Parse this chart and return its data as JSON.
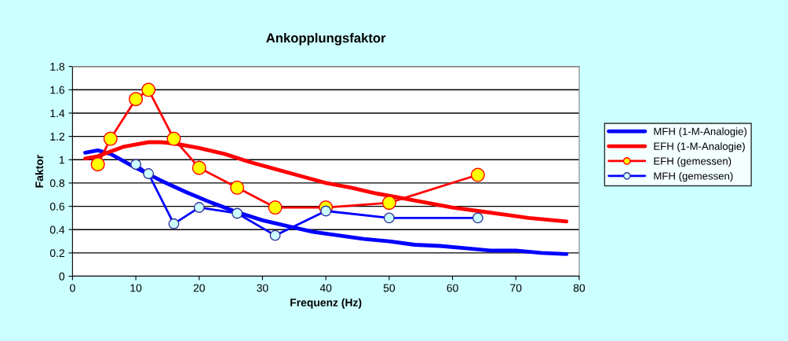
{
  "chart_data": {
    "type": "line",
    "title": "Ankopplungsfaktor",
    "xlabel": "Frequenz (Hz)",
    "ylabel": "Faktor",
    "xlim": [
      0,
      80
    ],
    "xticks": [
      0,
      10,
      20,
      30,
      40,
      50,
      60,
      70,
      80
    ],
    "ylim": [
      0,
      1.8
    ],
    "yticks": [
      0,
      0.2,
      0.4,
      0.6,
      0.8,
      1,
      1.2,
      1.4,
      1.6,
      1.8
    ],
    "grid": "y",
    "legend": "right",
    "series": [
      {
        "name": "MFH (1-M-Analogie)",
        "color": "#0000ff",
        "marker": "none",
        "x": [
          2,
          4,
          6,
          10,
          14,
          18,
          22,
          26,
          30,
          34,
          38,
          42,
          46,
          50,
          54,
          58,
          62,
          66,
          70,
          74,
          78
        ],
        "values": [
          1.06,
          1.08,
          1.05,
          0.93,
          0.82,
          0.72,
          0.63,
          0.55,
          0.48,
          0.43,
          0.38,
          0.35,
          0.32,
          0.3,
          0.27,
          0.26,
          0.24,
          0.22,
          0.22,
          0.2,
          0.19
        ]
      },
      {
        "name": "EFH (1-M-Analogie)",
        "color": "#ff0000",
        "marker": "none",
        "x": [
          2,
          4,
          6,
          8,
          10,
          12,
          14,
          16,
          20,
          24,
          28,
          32,
          36,
          40,
          44,
          48,
          52,
          56,
          60,
          64,
          68,
          72,
          76,
          78
        ],
        "values": [
          1.01,
          1.03,
          1.07,
          1.11,
          1.13,
          1.15,
          1.15,
          1.14,
          1.1,
          1.05,
          0.98,
          0.92,
          0.86,
          0.8,
          0.76,
          0.71,
          0.67,
          0.63,
          0.59,
          0.56,
          0.53,
          0.5,
          0.48,
          0.47
        ]
      },
      {
        "name": "EFH (gemessen)",
        "color": "#ff0000",
        "marker": "circle",
        "x": [
          4,
          6,
          10,
          12,
          16,
          20,
          26,
          32,
          40,
          50,
          64
        ],
        "values": [
          0.96,
          1.18,
          1.52,
          1.6,
          1.18,
          0.93,
          0.76,
          0.59,
          0.59,
          0.63,
          0.87
        ]
      },
      {
        "name": "MFH (gemessen)",
        "color": "#0000ff",
        "marker": "circle",
        "x": [
          10,
          12,
          16,
          20,
          26,
          32,
          40,
          50,
          64
        ],
        "values": [
          0.96,
          0.88,
          0.45,
          0.59,
          0.54,
          0.35,
          0.56,
          0.5,
          0.5
        ]
      }
    ]
  }
}
